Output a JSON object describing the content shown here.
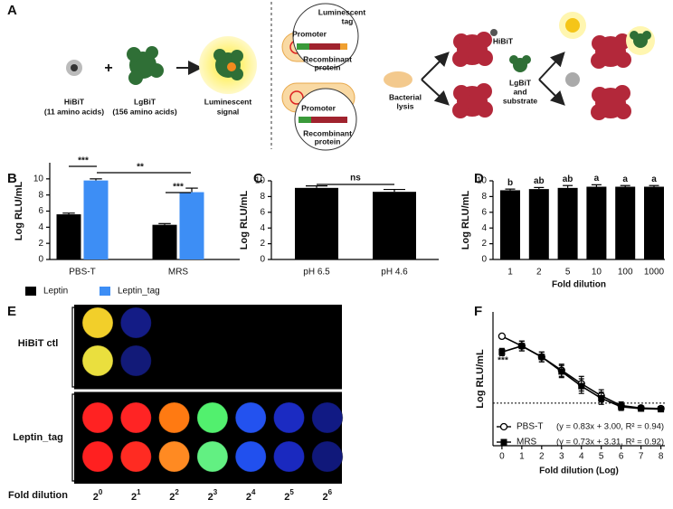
{
  "panel_a": {
    "label": "A",
    "hibit": {
      "name": "HiBiT",
      "detail": "(11 amino acids)"
    },
    "plus": "+",
    "lgbit": {
      "name": "LgBiT",
      "detail": "(156 amino acids)"
    },
    "signal": [
      "Luminescent",
      "signal"
    ],
    "construct_top": {
      "tag": [
        "Luminescent",
        "tag"
      ],
      "promoter": "Promoter",
      "protein": [
        "Recombinant",
        "protein"
      ]
    },
    "construct_bottom": {
      "promoter": "Promoter",
      "protein": [
        "Recombinant",
        "protein"
      ]
    },
    "lysis": [
      "Bacterial",
      "lysis"
    ],
    "hibit_label": "HiBiT",
    "substrate": [
      "LgBiT",
      "and",
      "substrate"
    ]
  },
  "panel_e": {
    "label": "E",
    "groups": [
      {
        "name": "HiBiT ctl",
        "rows": [
          [
            "#f2cf2a",
            "#141c86"
          ],
          [
            "#eadf3e",
            "#121a78"
          ]
        ]
      },
      {
        "name": "Leptin_tag",
        "rows": [
          [
            "#ff2222",
            "#ff2424",
            "#ff7a12",
            "#52f06e",
            "#2352ef",
            "#1b2bc2",
            "#111a84"
          ],
          [
            "#ff2020",
            "#ff2b22",
            "#ff8a22",
            "#62f082",
            "#2150ee",
            "#1a29bf",
            "#10187a"
          ]
        ]
      }
    ],
    "xlabel": "Fold dilution",
    "dilutions": [
      {
        "base": "2",
        "exp": "0"
      },
      {
        "base": "2",
        "exp": "1"
      },
      {
        "base": "2",
        "exp": "2"
      },
      {
        "base": "2",
        "exp": "3"
      },
      {
        "base": "2",
        "exp": "4"
      },
      {
        "base": "2",
        "exp": "5"
      },
      {
        "base": "2",
        "exp": "6"
      }
    ]
  },
  "chart_data": [
    {
      "type": "bar",
      "panel": "B",
      "ylabel": "Log RLU/mL",
      "categories": [
        "PBS-T",
        "MRS"
      ],
      "series": [
        {
          "name": "Leptin",
          "color": "#000000",
          "values": [
            5.6,
            4.3
          ],
          "errors": [
            0.15,
            0.15
          ]
        },
        {
          "name": "Leptin_tag",
          "color": "#3d8ef5",
          "values": [
            9.8,
            8.35
          ],
          "errors": [
            0.2,
            0.5
          ]
        }
      ],
      "ylim": [
        0,
        12
      ],
      "yticks": [
        0,
        2,
        4,
        6,
        8,
        10
      ],
      "legend": "bottom",
      "annotations": [
        "***",
        "**",
        "***"
      ]
    },
    {
      "type": "bar",
      "panel": "C",
      "ylabel": "Log RLU/mL",
      "categories": [
        "pH 6.5",
        "pH 4.6"
      ],
      "values": [
        9.1,
        8.6
      ],
      "errors": [
        0.25,
        0.3
      ],
      "color": "#000000",
      "ylim": [
        0,
        10
      ],
      "yticks": [
        0,
        2,
        4,
        6,
        8,
        10
      ],
      "annotations": [
        "ns"
      ]
    },
    {
      "type": "bar",
      "panel": "D",
      "ylabel": "Log RLU/mL",
      "xlabel": "Fold dilution",
      "categories": [
        "1",
        "2",
        "5",
        "10",
        "100",
        "1000"
      ],
      "values": [
        8.8,
        8.95,
        9.1,
        9.25,
        9.25,
        9.25
      ],
      "errors": [
        0.15,
        0.2,
        0.3,
        0.25,
        0.15,
        0.15
      ],
      "group_labels": [
        "b",
        "ab",
        "ab",
        "a",
        "a",
        "a"
      ],
      "color": "#000000",
      "ylim": [
        0,
        10
      ],
      "yticks": [
        0,
        2,
        4,
        6,
        8,
        10
      ]
    },
    {
      "type": "line",
      "panel": "F",
      "ylabel": "Log RLU/mL",
      "xlabel": "Fold dilution (Log)",
      "x": [
        0,
        1,
        2,
        3,
        4,
        5,
        6,
        7,
        8
      ],
      "xlim": [
        -0.45,
        8.2
      ],
      "xticks": [
        0,
        1,
        2,
        3,
        4,
        5,
        6,
        7,
        8
      ],
      "ylim": [
        0.8,
        11.8
      ],
      "threshold": 4.3,
      "series": [
        {
          "name": "PBS-T",
          "equation": "(y = 0.83x + 3.00, R² = 0.94)",
          "marker": "open-circle",
          "color": "#000000",
          "values": [
            9.8,
            9.0,
            8.1,
            7.0,
            5.9,
            4.9,
            4.1,
            3.9,
            3.85
          ],
          "errors": [
            0.1,
            0.4,
            0.4,
            0.5,
            0.6,
            0.5,
            0.3,
            0.1,
            0.1
          ]
        },
        {
          "name": "MRS",
          "equation": "(y = 0.73x + 3.31, R² = 0.92)",
          "marker": "filled-square",
          "color": "#000000",
          "values": [
            8.5,
            9.0,
            8.1,
            6.9,
            5.7,
            4.7,
            4.0,
            3.85,
            3.8
          ],
          "errors": [
            0.3,
            0.4,
            0.4,
            0.5,
            0.6,
            0.5,
            0.3,
            0.1,
            0.1
          ]
        }
      ],
      "legend": "lower-right",
      "annotations": [
        "***"
      ]
    }
  ]
}
